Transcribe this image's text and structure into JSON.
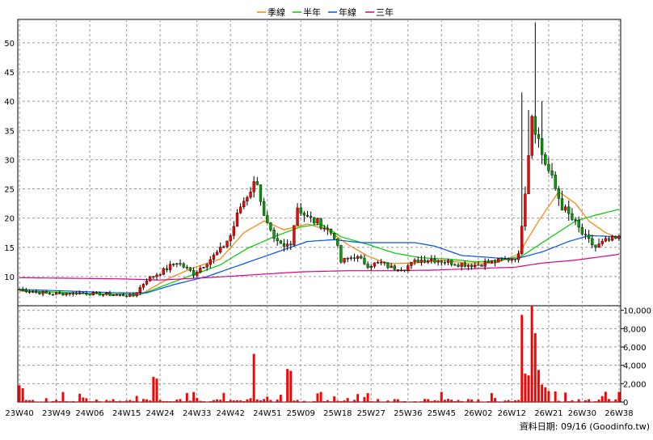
{
  "chart_data": {
    "type": "candlestick",
    "legend": [
      {
        "label": "季線",
        "color": "#ff8000"
      },
      {
        "label": "半年",
        "color": "#00cc00"
      },
      {
        "label": "年線",
        "color": "#0050ff"
      },
      {
        "label": "三年",
        "color": "#e0007f"
      }
    ],
    "price_axis": {
      "ticks": [
        10,
        15,
        20,
        25,
        30,
        35,
        40,
        45,
        50
      ],
      "ylim": [
        5,
        54
      ]
    },
    "volume_axis": {
      "ticks": [
        "0",
        "2,000",
        "4,000",
        "6,000",
        "8,000",
        "10,000"
      ],
      "ylim": [
        0,
        10500
      ]
    },
    "x_labels": [
      "23W40",
      "23W49",
      "24W06",
      "24W15",
      "24W24",
      "24W33",
      "24W42",
      "24W51",
      "25W09",
      "25W18",
      "25W27",
      "25W36",
      "25W45",
      "26W02",
      "26W12",
      "26W21",
      "26W30",
      "26W38"
    ],
    "footer": "資料日期: 09/16  (Goodinfo.tw)",
    "colors": {
      "up": "#ff0000",
      "down": "#00a000",
      "volume": "#ff0000",
      "wick": "#000000"
    },
    "price_keypoints": [
      [
        0,
        7.8
      ],
      [
        9,
        7.0
      ],
      [
        18,
        7.2
      ],
      [
        27,
        6.9
      ],
      [
        34,
        6.7
      ],
      [
        38,
        9.5
      ],
      [
        43,
        11.0
      ],
      [
        47,
        12.5
      ],
      [
        52,
        10.5
      ],
      [
        56,
        12.5
      ],
      [
        60,
        14.5
      ],
      [
        63,
        17.0
      ],
      [
        66,
        22.0
      ],
      [
        69,
        25.0
      ],
      [
        71,
        26.5
      ],
      [
        73,
        20.0
      ],
      [
        76,
        16.0
      ],
      [
        79,
        15.0
      ],
      [
        81,
        16.0
      ],
      [
        83,
        22.0
      ],
      [
        86,
        20.0
      ],
      [
        90,
        19.0
      ],
      [
        94,
        17.0
      ],
      [
        96,
        12.5
      ],
      [
        100,
        13.5
      ],
      [
        104,
        12.0
      ],
      [
        108,
        12.3
      ],
      [
        111,
        11.5
      ],
      [
        115,
        11.5
      ],
      [
        119,
        12.8
      ],
      [
        123,
        13.0
      ],
      [
        127,
        12.6
      ],
      [
        131,
        12.2
      ],
      [
        136,
        12.0
      ],
      [
        141,
        12.5
      ],
      [
        146,
        13.0
      ],
      [
        149,
        13.5
      ],
      [
        151,
        25.0
      ],
      [
        153,
        38.0
      ],
      [
        156,
        31.0
      ],
      [
        158,
        28.0
      ],
      [
        162,
        22.0
      ],
      [
        166,
        19.0
      ],
      [
        169,
        16.5
      ],
      [
        172,
        15.0
      ],
      [
        175,
        16.0
      ],
      [
        179,
        16.5
      ]
    ],
    "ma_quarter": [
      [
        0,
        7.5
      ],
      [
        20,
        7.1
      ],
      [
        36,
        6.9
      ],
      [
        45,
        9.8
      ],
      [
        52,
        11.5
      ],
      [
        60,
        13.0
      ],
      [
        67,
        17.5
      ],
      [
        73,
        19.5
      ],
      [
        79,
        18.0
      ],
      [
        86,
        19.0
      ],
      [
        92,
        18.0
      ],
      [
        98,
        15.5
      ],
      [
        104,
        13.5
      ],
      [
        110,
        12.2
      ],
      [
        118,
        12.3
      ],
      [
        126,
        12.8
      ],
      [
        134,
        12.3
      ],
      [
        142,
        12.3
      ],
      [
        149,
        13.8
      ],
      [
        155,
        19.5
      ],
      [
        161,
        24.5
      ],
      [
        166,
        22.5
      ],
      [
        170,
        19.5
      ],
      [
        175,
        17.5
      ],
      [
        179,
        16.5
      ]
    ],
    "ma_half": [
      [
        0,
        7.6
      ],
      [
        25,
        7.0
      ],
      [
        36,
        6.9
      ],
      [
        48,
        9.5
      ],
      [
        60,
        12.0
      ],
      [
        68,
        14.8
      ],
      [
        76,
        16.8
      ],
      [
        84,
        18.5
      ],
      [
        90,
        19.0
      ],
      [
        96,
        16.8
      ],
      [
        104,
        15.5
      ],
      [
        112,
        14.0
      ],
      [
        120,
        13.2
      ],
      [
        128,
        13.0
      ],
      [
        136,
        12.5
      ],
      [
        144,
        12.8
      ],
      [
        150,
        13.5
      ],
      [
        158,
        16.5
      ],
      [
        166,
        19.5
      ],
      [
        172,
        20.5
      ],
      [
        179,
        21.5
      ]
    ],
    "ma_year": [
      [
        0,
        7.8
      ],
      [
        30,
        7.2
      ],
      [
        38,
        7.2
      ],
      [
        46,
        8.6
      ],
      [
        56,
        10.0
      ],
      [
        66,
        12.0
      ],
      [
        76,
        14.0
      ],
      [
        86,
        16.0
      ],
      [
        94,
        16.3
      ],
      [
        102,
        15.8
      ],
      [
        110,
        15.8
      ],
      [
        118,
        15.8
      ],
      [
        124,
        15.2
      ],
      [
        132,
        13.6
      ],
      [
        142,
        13.2
      ],
      [
        148,
        13.0
      ],
      [
        156,
        14.2
      ],
      [
        164,
        16.0
      ],
      [
        170,
        17.0
      ],
      [
        179,
        16.8
      ]
    ],
    "ma_three": [
      [
        0,
        9.8
      ],
      [
        30,
        9.6
      ],
      [
        42,
        9.4
      ],
      [
        56,
        9.8
      ],
      [
        70,
        10.3
      ],
      [
        84,
        10.8
      ],
      [
        98,
        11.0
      ],
      [
        112,
        11.0
      ],
      [
        124,
        11.1
      ],
      [
        138,
        11.4
      ],
      [
        148,
        11.6
      ],
      [
        156,
        12.3
      ],
      [
        166,
        12.8
      ],
      [
        179,
        13.8
      ]
    ],
    "spikes": [
      [
        150,
        41.5
      ],
      [
        154,
        53.5
      ],
      [
        152,
        38.5
      ],
      [
        156,
        40.0
      ]
    ],
    "volume_spikes": [
      [
        40,
        2750
      ],
      [
        41,
        2550
      ],
      [
        70,
        5250
      ],
      [
        80,
        3600
      ],
      [
        81,
        3400
      ],
      [
        150,
        9500
      ],
      [
        151,
        3100
      ],
      [
        152,
        2900
      ],
      [
        153,
        10500
      ],
      [
        154,
        7500
      ],
      [
        155,
        3500
      ],
      [
        156,
        1900
      ],
      [
        157,
        1600
      ],
      [
        158,
        1200
      ]
    ]
  }
}
